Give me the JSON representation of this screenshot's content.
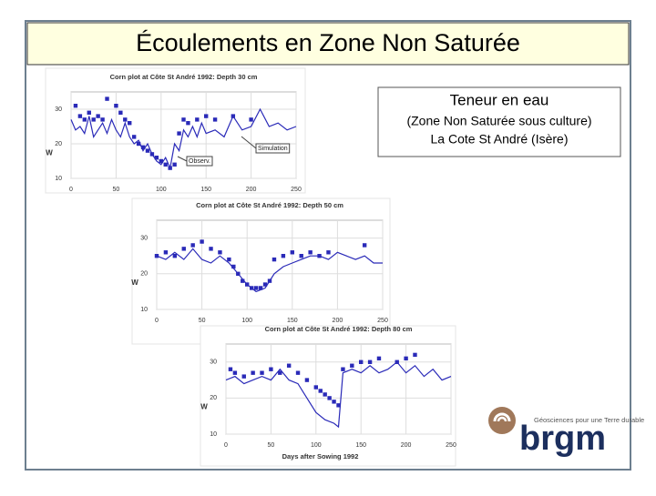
{
  "slide": {
    "title": "Écoulements en Zone Non Saturée",
    "info": [
      "Teneur en eau",
      "(Zone Non Saturée sous culture)",
      "La Cote St André (Isère)"
    ],
    "logo": {
      "name": "brgm",
      "tagline": "Géosciences pour une Terre durable"
    }
  },
  "chart_data": [
    {
      "type": "scatter-line",
      "title": "Corn plot at Côte St André 1992: Depth 30 cm",
      "y_label": "W",
      "xlim": [
        0,
        250
      ],
      "xticks": [
        0,
        50,
        100,
        150,
        200,
        250
      ],
      "ylim": [
        10,
        35
      ],
      "yticks": [
        10,
        20,
        30
      ],
      "grid": true,
      "series": [
        {
          "name": "Simulation",
          "kind": "line",
          "color": "#2a2ab8",
          "x": [
            0,
            5,
            10,
            15,
            20,
            25,
            30,
            35,
            40,
            45,
            50,
            55,
            60,
            65,
            70,
            75,
            80,
            85,
            90,
            95,
            100,
            105,
            110,
            115,
            120,
            125,
            130,
            135,
            140,
            145,
            150,
            160,
            170,
            180,
            190,
            200,
            210,
            220,
            230,
            240,
            250
          ],
          "values": [
            27,
            24,
            25,
            23,
            28,
            22,
            24,
            26,
            23,
            27,
            24,
            22,
            26,
            22,
            20,
            21,
            18,
            20,
            17,
            15,
            14,
            16,
            13,
            20,
            18,
            24,
            22,
            25,
            22,
            26,
            23,
            24,
            22,
            28,
            24,
            25,
            30,
            25,
            26,
            24,
            25
          ]
        },
        {
          "name": "Observ.",
          "kind": "points",
          "color": "#2a2ab8",
          "x": [
            5,
            10,
            15,
            20,
            25,
            30,
            35,
            40,
            50,
            55,
            60,
            65,
            70,
            75,
            80,
            85,
            90,
            95,
            100,
            105,
            110,
            115,
            120,
            125,
            130,
            140,
            150,
            160,
            180,
            200
          ],
          "values": [
            31,
            28,
            27,
            29,
            27,
            28,
            27,
            33,
            31,
            29,
            27,
            26,
            22,
            20,
            19,
            18,
            17,
            16,
            15,
            14,
            13,
            14,
            23,
            27,
            26,
            27,
            28,
            27,
            28,
            27
          ]
        }
      ]
    },
    {
      "type": "scatter-line",
      "title": "Corn plot at Côte St André 1992: Depth 50 cm",
      "y_label": "W",
      "xlim": [
        0,
        250
      ],
      "xticks": [
        0,
        50,
        100,
        150,
        200,
        250
      ],
      "ylim": [
        10,
        35
      ],
      "yticks": [
        10,
        20,
        30
      ],
      "grid": true,
      "series": [
        {
          "kind": "line",
          "color": "#2a2ab8",
          "x": [
            0,
            10,
            20,
            30,
            40,
            50,
            60,
            70,
            80,
            90,
            100,
            110,
            120,
            130,
            140,
            150,
            160,
            170,
            180,
            190,
            200,
            210,
            220,
            230,
            240,
            250
          ],
          "values": [
            25,
            24,
            26,
            24,
            27,
            24,
            23,
            25,
            23,
            20,
            17,
            15,
            16,
            20,
            22,
            23,
            24,
            25,
            25,
            24,
            26,
            25,
            24,
            25,
            23,
            23
          ]
        },
        {
          "kind": "points",
          "color": "#2a2ab8",
          "x": [
            0,
            10,
            20,
            30,
            40,
            50,
            60,
            70,
            80,
            85,
            90,
            95,
            100,
            105,
            110,
            115,
            120,
            125,
            130,
            140,
            150,
            160,
            170,
            180,
            190,
            230
          ],
          "values": [
            25,
            26,
            25,
            27,
            28,
            29,
            27,
            26,
            24,
            22,
            20,
            18,
            17,
            16,
            16,
            16,
            17,
            18,
            24,
            25,
            26,
            25,
            26,
            25,
            26,
            28
          ]
        }
      ]
    },
    {
      "type": "scatter-line",
      "title": "Corn plot at Côte St André 1992: Depth 80 cm",
      "y_label": "W",
      "x_label": "Days after Sowing 1992",
      "xlim": [
        0,
        250
      ],
      "xticks": [
        0,
        50,
        100,
        150,
        200,
        250
      ],
      "ylim": [
        10,
        35
      ],
      "yticks": [
        10,
        20,
        30
      ],
      "grid": true,
      "series": [
        {
          "kind": "line",
          "color": "#2a2ab8",
          "x": [
            0,
            10,
            20,
            30,
            40,
            50,
            60,
            70,
            80,
            90,
            100,
            110,
            120,
            125,
            130,
            140,
            150,
            160,
            170,
            180,
            190,
            200,
            210,
            220,
            230,
            240,
            250
          ],
          "values": [
            25,
            26,
            24,
            25,
            26,
            25,
            28,
            25,
            24,
            20,
            16,
            14,
            13,
            12,
            27,
            28,
            27,
            29,
            27,
            28,
            30,
            27,
            29,
            26,
            28,
            25,
            26
          ]
        },
        {
          "kind": "points",
          "color": "#2a2ab8",
          "x": [
            5,
            10,
            20,
            30,
            40,
            50,
            60,
            70,
            80,
            90,
            100,
            105,
            110,
            115,
            120,
            125,
            130,
            140,
            150,
            160,
            170,
            190,
            200,
            210
          ],
          "values": [
            28,
            27,
            26,
            27,
            27,
            28,
            27,
            29,
            27,
            25,
            23,
            22,
            21,
            20,
            19,
            18,
            28,
            29,
            30,
            30,
            31,
            30,
            31,
            32
          ]
        }
      ]
    }
  ]
}
